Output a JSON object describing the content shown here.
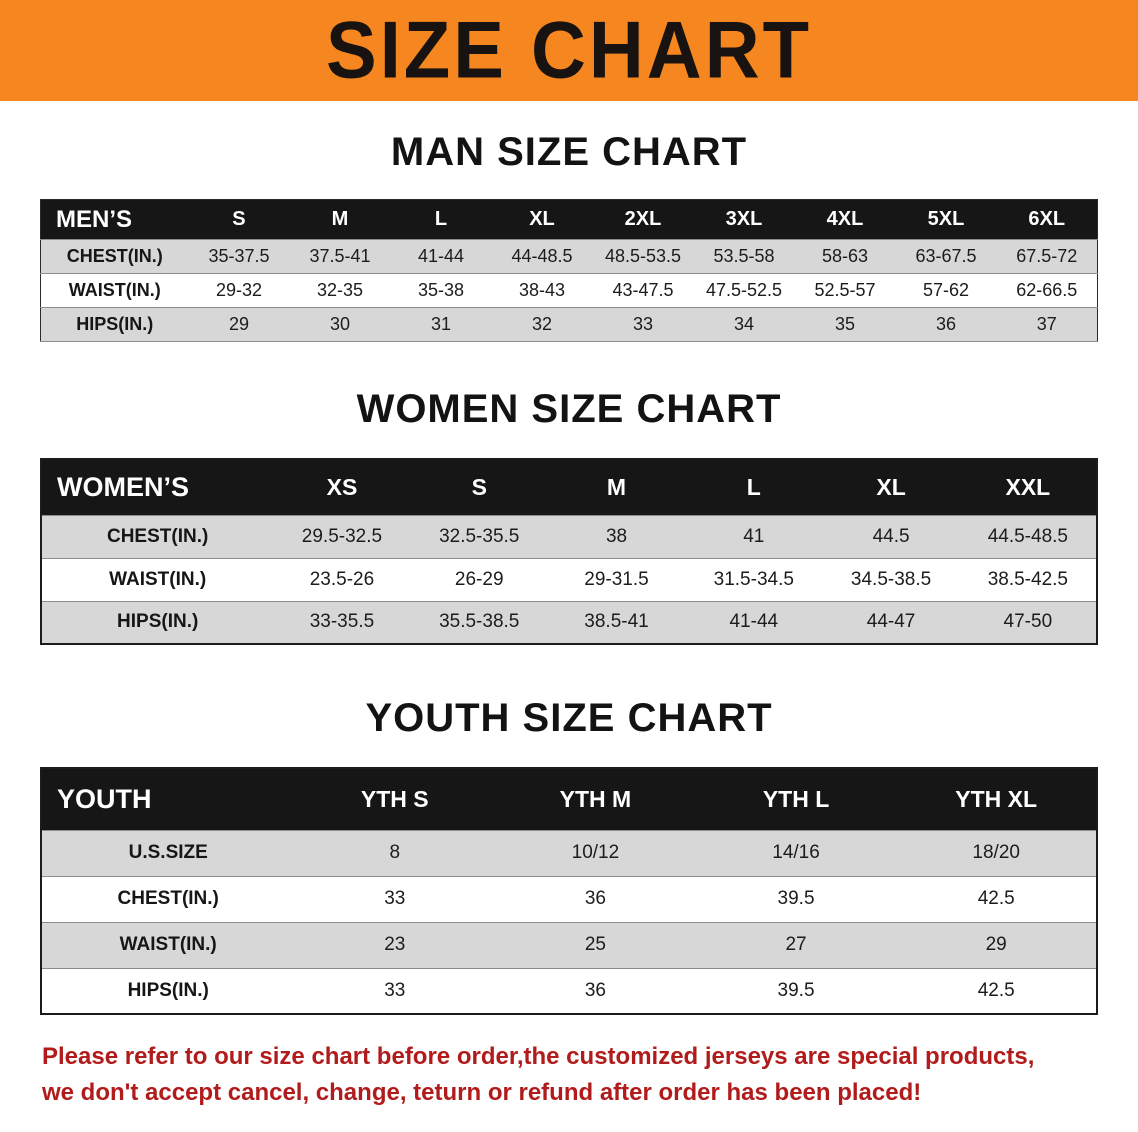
{
  "banner": {
    "title": "SIZE CHART"
  },
  "colors": {
    "banner_bg": "#f6861f",
    "title_color": "#181310",
    "header_bg": "#161616",
    "stripe": "#d7d7d7",
    "footer_red": "#b11b1b"
  },
  "sections": [
    {
      "heading": "MAN SIZE CHART",
      "table": {
        "header": [
          "MEN’S",
          "S",
          "M",
          "L",
          "XL",
          "2XL",
          "3XL",
          "4XL",
          "5XL",
          "6XL"
        ],
        "rows": [
          [
            "CHEST(IN.)",
            "35-37.5",
            "37.5-41",
            "41-44",
            "44-48.5",
            "48.5-53.5",
            "53.5-58",
            "58-63",
            "63-67.5",
            "67.5-72"
          ],
          [
            "WAIST(IN.)",
            "29-32",
            "32-35",
            "35-38",
            "38-43",
            "43-47.5",
            "47.5-52.5",
            "52.5-57",
            "57-62",
            "62-66.5"
          ],
          [
            "HIPS(IN.)",
            "29",
            "30",
            "31",
            "32",
            "33",
            "34",
            "35",
            "36",
            "37"
          ]
        ]
      }
    },
    {
      "heading": "WOMEN SIZE CHART",
      "table": {
        "header": [
          "WOMEN’S",
          "XS",
          "S",
          "M",
          "L",
          "XL",
          "XXL"
        ],
        "rows": [
          [
            "CHEST(IN.)",
            "29.5-32.5",
            "32.5-35.5",
            "38",
            "41",
            "44.5",
            "44.5-48.5"
          ],
          [
            "WAIST(IN.)",
            "23.5-26",
            "26-29",
            "29-31.5",
            "31.5-34.5",
            "34.5-38.5",
            "38.5-42.5"
          ],
          [
            "HIPS(IN.)",
            "33-35.5",
            "35.5-38.5",
            "38.5-41",
            "41-44",
            "44-47",
            "47-50"
          ]
        ]
      }
    },
    {
      "heading": "YOUTH SIZE CHART",
      "table": {
        "header": [
          "YOUTH",
          "YTH S",
          "YTH M",
          "YTH L",
          "YTH XL"
        ],
        "rows": [
          [
            "U.S.SIZE",
            "8",
            "10/12",
            "14/16",
            "18/20"
          ],
          [
            "CHEST(IN.)",
            "33",
            "36",
            "39.5",
            "42.5"
          ],
          [
            "WAIST(IN.)",
            "23",
            "25",
            "27",
            "29"
          ],
          [
            "HIPS(IN.)",
            "33",
            "36",
            "39.5",
            "42.5"
          ]
        ]
      }
    }
  ],
  "footer": {
    "line1": "Please refer to our size chart before order,the customized jerseys are special products,",
    "line2": "we don't accept cancel, change, teturn or refund after order has been placed!"
  }
}
